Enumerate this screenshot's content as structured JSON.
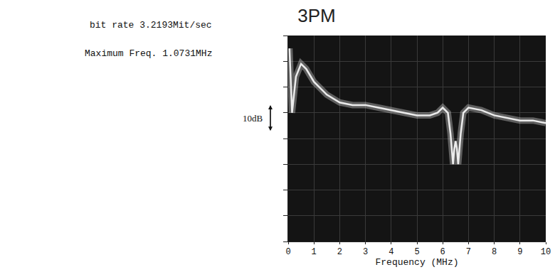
{
  "chart_data": {
    "type": "line",
    "title": "3PM",
    "subtitle": [
      "bit rate 3.2193Mit/sec",
      "Maximum Freq. 1.0731MHz"
    ],
    "x_label": "Frequency (MHz)",
    "x": [
      0.05,
      0.15,
      0.3,
      0.5,
      0.7,
      1.0,
      1.5,
      2.0,
      2.5,
      3.0,
      3.5,
      4.0,
      4.5,
      5.0,
      5.5,
      5.8,
      6.0,
      6.2,
      6.3,
      6.4,
      6.45,
      6.5,
      6.55,
      6.6,
      6.7,
      6.8,
      7.0,
      7.5,
      8.0,
      8.5,
      9.0,
      9.5,
      10.0
    ],
    "values": [
      -5,
      -30,
      -16,
      -11,
      -13,
      -18,
      -23,
      -26,
      -27,
      -27,
      -28,
      -29,
      -30,
      -31,
      -31,
      -30,
      -28,
      -30,
      -38,
      -50,
      -44,
      -41,
      -44,
      -50,
      -38,
      -30,
      -28,
      -29,
      -31,
      -32,
      -33,
      -33,
      -34
    ],
    "xlim": [
      0,
      10
    ],
    "xticks": [
      0,
      1,
      2,
      3,
      4,
      5,
      6,
      7,
      8,
      9,
      10
    ],
    "ylim": [
      -80,
      0
    ],
    "yticks": [
      -80,
      -70,
      -60,
      -50,
      -40,
      -30,
      -20,
      -10,
      0
    ],
    "tick_labels": "x",
    "grid": true,
    "color": "#ececec",
    "annotations": [
      {
        "text": "10dB",
        "y": -32
      }
    ]
  }
}
